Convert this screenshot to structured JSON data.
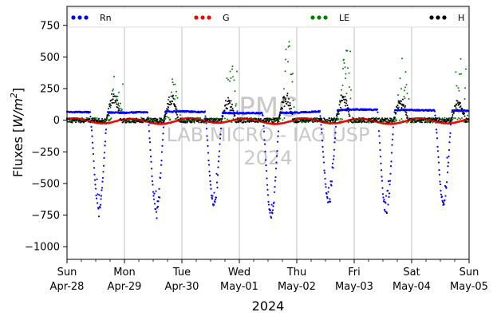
{
  "chart_data": {
    "type": "scatter",
    "title": "",
    "xlabel": "2024",
    "ylabel_main": "Fluxes [",
    "ylabel_unit": "W/m",
    "ylabel_sup": "2",
    "ylabel_end": "]",
    "ylim": [
      -1100,
      900
    ],
    "xlim": [
      "2024-04-28T00:00",
      "2024-05-05T00:00"
    ],
    "yticks": [
      -1000,
      -750,
      -500,
      -250,
      0,
      250,
      500,
      750
    ],
    "ytick_labels": [
      "−1000",
      "−750",
      "−500",
      "−250",
      "0",
      "250",
      "500",
      "750"
    ],
    "xticks": [
      {
        "day": "Sun",
        "date": "Apr-28"
      },
      {
        "day": "Mon",
        "date": "Apr-29"
      },
      {
        "day": "Tue",
        "date": "Apr-30"
      },
      {
        "day": "Wed",
        "date": "May-01"
      },
      {
        "day": "Thu",
        "date": "May-02"
      },
      {
        "day": "Fri",
        "date": "May-03"
      },
      {
        "day": "Sat",
        "date": "May-04"
      },
      {
        "day": "Sun",
        "date": "May-05"
      }
    ],
    "grid": "x-major",
    "legend_position": "top",
    "watermark": [
      "PMC",
      "LAB MICRO - IAG USP",
      "2024"
    ],
    "series": [
      {
        "name": "Rn",
        "color": "#0000ff",
        "daily_night_value": [
          65,
          60,
          70,
          55,
          60,
          85,
          80,
          75
        ],
        "daily_noon_min": [
          -705,
          -720,
          -665,
          -760,
          -650,
          -740,
          -660
        ],
        "markersize": 1.6
      },
      {
        "name": "G",
        "color": "#ff0000",
        "daily_min": [
          -25,
          -30,
          -20,
          -30,
          -25,
          -30,
          -25
        ],
        "daily_max": [
          15,
          10,
          15,
          10,
          15,
          10,
          15
        ],
        "markersize": 1.8
      },
      {
        "name": "LE",
        "color": "#008000",
        "daily_peak": [
          330,
          345,
          410,
          670,
          550,
          450,
          460
        ],
        "markersize": 1.4
      },
      {
        "name": "H",
        "color": "#000000",
        "daily_peak": [
          225,
          210,
          175,
          215,
          215,
          190,
          165
        ],
        "markersize": 1.4
      }
    ]
  }
}
